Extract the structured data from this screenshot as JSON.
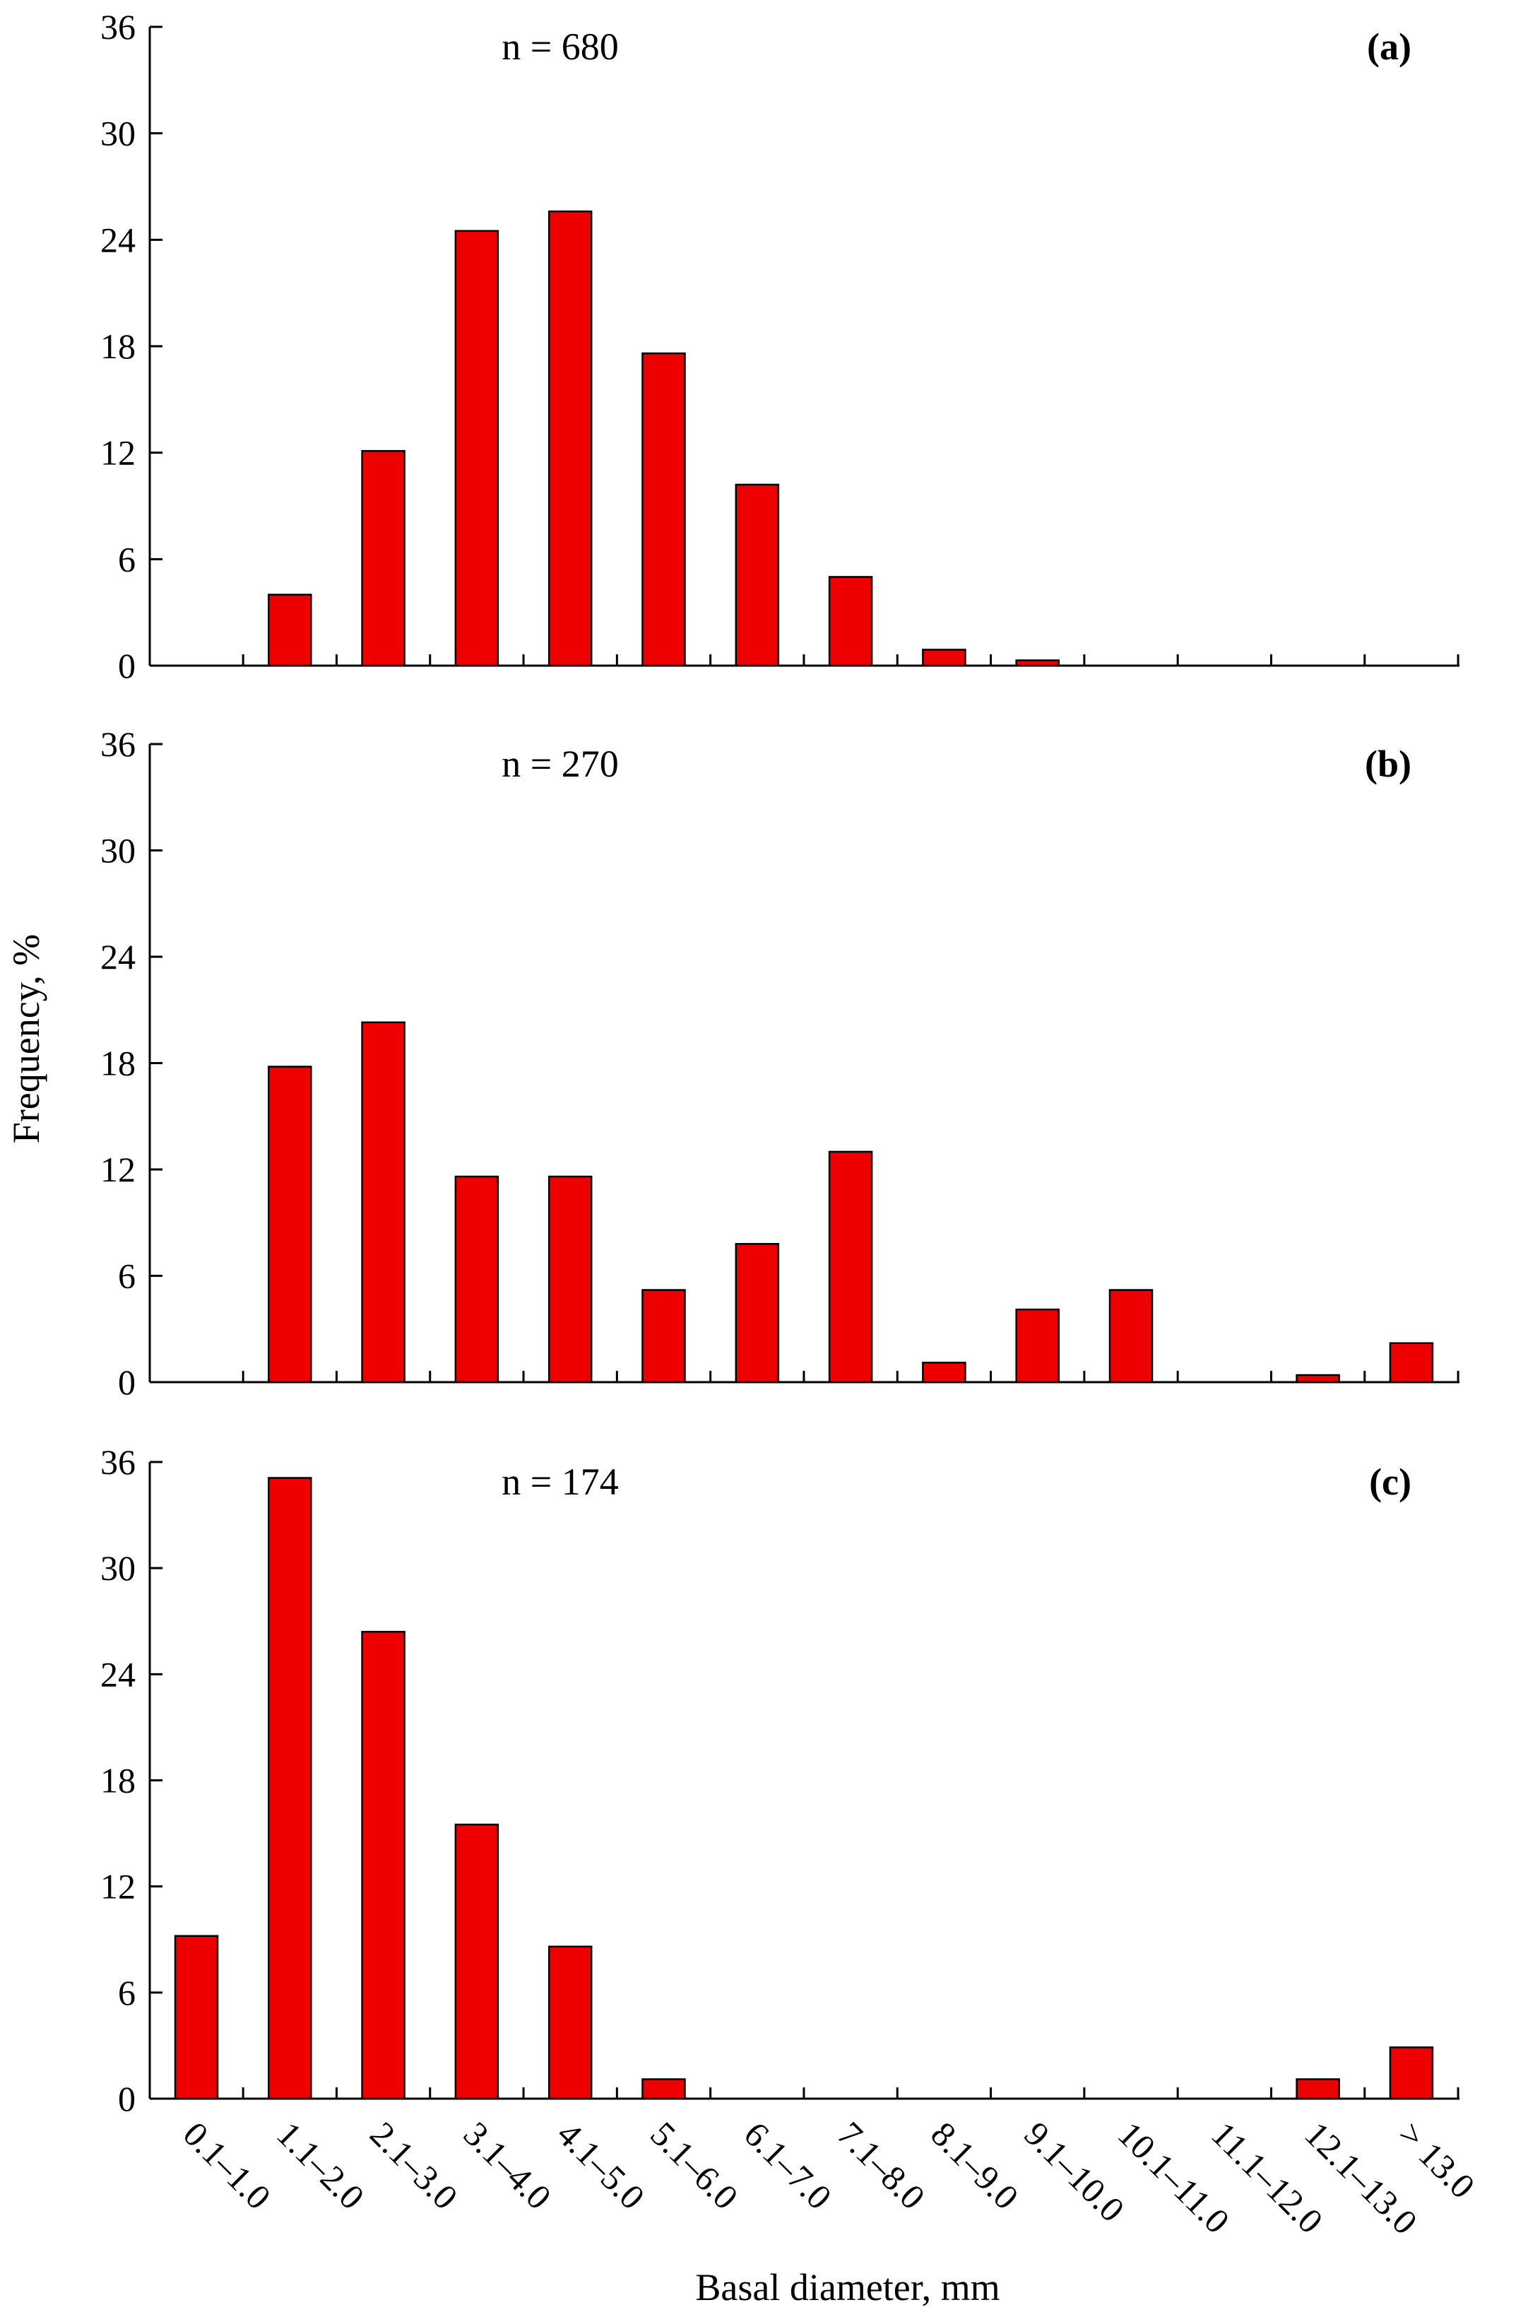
{
  "chart_data": [
    {
      "type": "bar",
      "panel_label": "(a)",
      "sample_size_label": "n = 680",
      "categories": [
        "0.1–1.0",
        "1.1–2.0",
        "2.1–3.0",
        "3.1–4.0",
        "4.1–5.0",
        "5.1–6.0",
        "6.1–7.0",
        "7.1–8.0",
        "8.1–9.0",
        "9.1–10.0",
        "10.1–11.0",
        "11.1–12.0",
        "12.1–13.0",
        "> 13.0"
      ],
      "values": [
        0,
        4.0,
        12.1,
        24.5,
        25.6,
        17.6,
        10.2,
        5.0,
        0.9,
        0.3,
        0,
        0,
        0,
        0
      ],
      "yticks": [
        "0",
        "6",
        "12",
        "18",
        "24",
        "30",
        "36"
      ],
      "ylim": [
        0,
        36
      ],
      "bar_color": "#ee0000"
    },
    {
      "type": "bar",
      "panel_label": "(b)",
      "sample_size_label": "n = 270",
      "categories": [
        "0.1–1.0",
        "1.1–2.0",
        "2.1–3.0",
        "3.1–4.0",
        "4.1–5.0",
        "5.1–6.0",
        "6.1–7.0",
        "7.1–8.0",
        "8.1–9.0",
        "9.1–10.0",
        "10.1–11.0",
        "11.1–12.0",
        "12.1–13.0",
        "> 13.0"
      ],
      "values": [
        0,
        17.8,
        20.3,
        11.6,
        11.6,
        5.2,
        7.8,
        13.0,
        1.1,
        4.1,
        5.2,
        0,
        0.4,
        2.2
      ],
      "yticks": [
        "0",
        "6",
        "12",
        "18",
        "24",
        "30",
        "36"
      ],
      "ylim": [
        0,
        36
      ],
      "bar_color": "#ee0000"
    },
    {
      "type": "bar",
      "panel_label": "(c)",
      "sample_size_label": "n = 174",
      "categories": [
        "0.1–1.0",
        "1.1–2.0",
        "2.1–3.0",
        "3.1–4.0",
        "4.1–5.0",
        "5.1–6.0",
        "6.1–7.0",
        "7.1–8.0",
        "8.1–9.0",
        "9.1–10.0",
        "10.1–11.0",
        "11.1–12.0",
        "12.1–13.0",
        "> 13.0"
      ],
      "values": [
        9.2,
        35.1,
        26.4,
        15.5,
        8.6,
        1.1,
        0,
        0,
        0,
        0,
        0,
        0,
        1.1,
        2.9
      ],
      "yticks": [
        "0",
        "6",
        "12",
        "18",
        "24",
        "30",
        "36"
      ],
      "ylim": [
        0,
        36
      ],
      "bar_color": "#ee0000"
    }
  ],
  "ylabel": "Frequency, %",
  "xlabel": "Basal diameter, mm"
}
